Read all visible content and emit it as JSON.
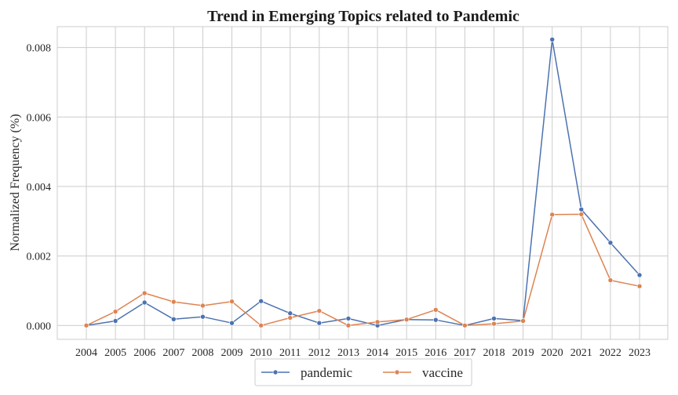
{
  "chart_data": {
    "type": "line",
    "title": "Trend in Emerging Topics related to Pandemic",
    "xlabel": "",
    "ylabel": "Normalized Frequency (%)",
    "x": [
      "2004",
      "2005",
      "2006",
      "2007",
      "2008",
      "2009",
      "2010",
      "2011",
      "2012",
      "2013",
      "2014",
      "2015",
      "2016",
      "2017",
      "2018",
      "2019",
      "2020",
      "2021",
      "2022",
      "2023"
    ],
    "y_ticks": [
      "0.000",
      "0.002",
      "0.004",
      "0.006",
      "0.008"
    ],
    "ylim": [
      -0.0004,
      0.0086
    ],
    "grid": true,
    "legend_position": "bottom-center",
    "series": [
      {
        "name": "pandemic",
        "color": "#4c72b0",
        "values": [
          0.0,
          0.00013,
          0.00066,
          0.00018,
          0.00025,
          7e-05,
          0.0007,
          0.00035,
          7e-05,
          0.0002,
          0.0,
          0.00017,
          0.00016,
          0.0,
          0.0002,
          0.00014,
          0.00823,
          0.00334,
          0.00238,
          0.00145
        ]
      },
      {
        "name": "vaccine",
        "color": "#dd8452",
        "values": [
          0.0,
          0.0004,
          0.00093,
          0.00068,
          0.00057,
          0.00069,
          0.0,
          0.00022,
          0.00042,
          0.0,
          0.0001,
          0.00017,
          0.00045,
          0.0,
          5e-05,
          0.00013,
          0.00319,
          0.0032,
          0.0013,
          0.00113
        ]
      }
    ]
  }
}
